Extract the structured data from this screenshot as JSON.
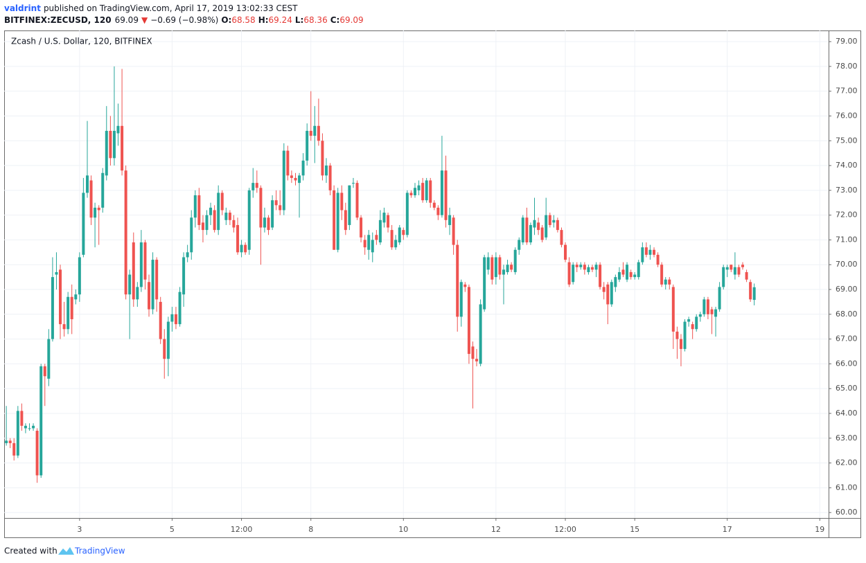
{
  "header": {
    "author": "valdrint",
    "published": "published on TradingView.com, April 17, 2019 13:02:33 CEST"
  },
  "footer": {
    "created": "Created with",
    "brand": "TradingView"
  },
  "chart_data": {
    "type": "candlestick",
    "title": "Zcash / U.S. Dollar, 120, BITFINEX",
    "quote": {
      "symbol": "BITFINEX:ZECUSD, 120",
      "last": 69.09,
      "arrow": "▼",
      "change": "−0.69 (−0.98%)",
      "open_label": "O:",
      "open": 68.58,
      "high_label": "H:",
      "high": 69.24,
      "low_label": "L:",
      "low": 68.36,
      "close_label": "C:",
      "close": 69.09
    },
    "up_color": "#26a69a",
    "down_color": "#ef5350",
    "grid": true,
    "xlim": [
      1.37,
      19.19
    ],
    "xticks": [
      3,
      5,
      {
        "value": 6.5,
        "label": "12:00"
      },
      8,
      10,
      12,
      {
        "value": 13.5,
        "label": "12:00"
      },
      15,
      17,
      19
    ],
    "ylim": [
      59.78,
      79.45
    ],
    "yticks": [
      {
        "value": 60,
        "label": "60.00"
      },
      {
        "value": 61,
        "label": "61.00"
      },
      {
        "value": 62,
        "label": "62.00"
      },
      {
        "value": 63,
        "label": "63.00"
      },
      {
        "value": 64,
        "label": "64.00"
      },
      {
        "value": 65,
        "label": "65.00"
      },
      {
        "value": 66,
        "label": "66.00"
      },
      {
        "value": 67,
        "label": "67.00"
      },
      {
        "value": 68,
        "label": "68.00"
      },
      {
        "value": 69,
        "label": "69.00"
      },
      {
        "value": 70,
        "label": "70.00"
      },
      {
        "value": 71,
        "label": "71.00"
      },
      {
        "value": 72,
        "label": "72.00"
      },
      {
        "value": 73,
        "label": "73.00"
      },
      {
        "value": 74,
        "label": "74.00"
      },
      {
        "value": 75,
        "label": "75.00"
      },
      {
        "value": 76,
        "label": "76.00"
      },
      {
        "value": 77,
        "label": "77.00"
      },
      {
        "value": 78,
        "label": "78.00"
      },
      {
        "value": 79,
        "label": "79.00"
      }
    ],
    "x": [
      1.417,
      1.5,
      1.583,
      1.667,
      1.75,
      1.833,
      1.917,
      2,
      2.083,
      2.167,
      2.25,
      2.333,
      2.417,
      2.5,
      2.583,
      2.667,
      2.75,
      2.833,
      2.917,
      3,
      3.083,
      3.167,
      3.25,
      3.333,
      3.417,
      3.5,
      3.583,
      3.667,
      3.75,
      3.833,
      3.917,
      4,
      4.083,
      4.167,
      4.25,
      4.333,
      4.417,
      4.5,
      4.583,
      4.667,
      4.75,
      4.833,
      4.917,
      5,
      5.083,
      5.167,
      5.25,
      5.333,
      5.417,
      5.5,
      5.583,
      5.667,
      5.75,
      5.833,
      5.917,
      6,
      6.083,
      6.167,
      6.25,
      6.333,
      6.417,
      6.5,
      6.583,
      6.667,
      6.75,
      6.833,
      6.917,
      7,
      7.083,
      7.167,
      7.25,
      7.333,
      7.417,
      7.5,
      7.583,
      7.667,
      7.75,
      7.833,
      7.917,
      8,
      8.083,
      8.167,
      8.25,
      8.333,
      8.417,
      8.5,
      8.583,
      8.667,
      8.75,
      8.833,
      8.917,
      9,
      9.083,
      9.167,
      9.25,
      9.333,
      9.417,
      9.5,
      9.583,
      9.667,
      9.75,
      9.833,
      9.917,
      10,
      10.083,
      10.167,
      10.25,
      10.333,
      10.417,
      10.5,
      10.583,
      10.667,
      10.75,
      10.833,
      10.917,
      11,
      11.083,
      11.167,
      11.25,
      11.333,
      11.417,
      11.5,
      11.583,
      11.667,
      11.75,
      11.833,
      11.917,
      12,
      12.083,
      12.167,
      12.25,
      12.333,
      12.417,
      12.5,
      12.583,
      12.667,
      12.75,
      12.833,
      12.917,
      13,
      13.083,
      13.167,
      13.25,
      13.333,
      13.417,
      13.5,
      13.583,
      13.667,
      13.75,
      13.833,
      13.917,
      14,
      14.083,
      14.167,
      14.25,
      14.333,
      14.417,
      14.5,
      14.583,
      14.667,
      14.75,
      14.833,
      14.917,
      15,
      15.083,
      15.167,
      15.25,
      15.333,
      15.417,
      15.5,
      15.583,
      15.667,
      15.75,
      15.833,
      15.917,
      16,
      16.083,
      16.167,
      16.25,
      16.333,
      16.417,
      16.5,
      16.583,
      16.667,
      16.75,
      16.833,
      16.917,
      17,
      17.083,
      17.167,
      17.25,
      17.333,
      17.417,
      17.5,
      17.583
    ],
    "open": [
      62.8,
      62.9,
      62.8,
      62.3,
      64.1,
      63.4,
      63.4,
      63.4,
      63.3,
      61.5,
      65.9,
      65.4,
      67.0,
      69.6,
      69.8,
      67.6,
      67.4,
      68.7,
      68.6,
      68.8,
      70.4,
      72.9,
      73.4,
      71.9,
      72.3,
      72.3,
      73.6,
      75.4,
      74.3,
      75.3,
      75.6,
      73.8,
      68.8,
      70.9,
      68.6,
      69.1,
      70.9,
      69.3,
      68.2,
      70.2,
      68.5,
      67.0,
      66.2,
      67.7,
      68.0,
      67.6,
      68.8,
      70.3,
      70.5,
      71.9,
      72.8,
      71.7,
      71.4,
      72.0,
      72.2,
      71.4,
      72.9,
      71.8,
      72.1,
      71.8,
      71.6,
      70.5,
      70.8,
      70.6,
      73.0,
      73.3,
      73.1,
      71.5,
      71.9,
      71.5,
      72.6,
      72.4,
      72.2,
      74.6,
      73.6,
      73.5,
      73.3,
      73.6,
      74.2,
      75.4,
      75.2,
      75.6,
      75.0,
      73.6,
      74.0,
      73.0,
      70.6,
      72.9,
      72.2,
      71.6,
      73.3,
      73.3,
      71.9,
      71.0,
      70.6,
      70.5,
      71.2,
      70.9,
      71.7,
      72.0,
      71.4,
      70.7,
      70.9,
      71.4,
      71.2,
      72.9,
      72.8,
      73.0,
      73.3,
      72.6,
      73.4,
      72.5,
      72.3,
      72.0,
      73.8,
      71.6,
      71.9,
      70.8,
      67.9,
      69.2,
      69.1,
      66.7,
      66.2,
      66.0,
      68.2,
      69.8,
      70.3,
      69.5,
      70.3,
      69.6,
      69.7,
      70.0,
      69.7,
      70.6,
      70.9,
      71.9,
      70.9,
      71.5,
      71.7,
      71.5,
      71.1,
      72.0,
      71.7,
      71.8,
      71.4,
      70.8,
      70.1,
      69.3,
      70.0,
      69.9,
      70.0,
      69.7,
      69.9,
      69.8,
      70.0,
      69.1,
      69.2,
      68.4,
      69.1,
      69.4,
      69.8,
      69.4,
      69.7,
      69.5,
      69.5,
      70.1,
      70.7,
      70.4,
      70.6,
      70.4,
      70.0,
      69.2,
      69.4,
      69.1,
      67.3,
      67.0,
      66.6,
      67.7,
      67.6,
      67.4,
      67.9,
      68.0,
      68.6,
      68.2,
      67.9,
      68.2,
      69.1,
      69.8,
      70.0,
      69.6,
      69.9,
      70.0,
      69.7,
      69.3,
      68.58
    ],
    "high": [
      64.3,
      63.0,
      63.0,
      64.3,
      64.4,
      63.6,
      63.6,
      63.6,
      63.4,
      66.0,
      66.0,
      67.4,
      70.3,
      70.5,
      70.0,
      68.5,
      68.9,
      69.2,
      69.0,
      70.5,
      73.5,
      75.8,
      73.6,
      72.5,
      72.4,
      73.9,
      76.4,
      76.0,
      78.0,
      76.5,
      77.9,
      74.0,
      69.8,
      71.3,
      69.3,
      71.4,
      71.0,
      69.6,
      70.5,
      70.3,
      68.7,
      67.4,
      67.9,
      68.3,
      68.3,
      69.1,
      70.5,
      70.8,
      72.2,
      73.0,
      73.1,
      72.0,
      72.2,
      72.5,
      72.4,
      73.2,
      73.0,
      72.3,
      72.2,
      72.0,
      71.9,
      71.0,
      70.9,
      73.1,
      73.9,
      73.8,
      73.2,
      72.3,
      72.0,
      72.8,
      73.0,
      73.0,
      74.9,
      74.8,
      73.8,
      73.7,
      73.7,
      74.5,
      75.7,
      77.0,
      76.4,
      76.7,
      75.3,
      74.3,
      74.1,
      73.2,
      73.1,
      73.2,
      72.5,
      73.2,
      73.5,
      73.4,
      72.0,
      71.2,
      71.4,
      71.3,
      71.4,
      72.2,
      72.3,
      72.1,
      71.6,
      71.2,
      71.6,
      71.5,
      73.0,
      73.0,
      73.3,
      73.4,
      73.5,
      73.5,
      73.5,
      72.6,
      72.4,
      75.2,
      74.4,
      72.3,
      72.0,
      71.0,
      69.4,
      69.3,
      69.2,
      66.9,
      66.6,
      68.6,
      70.4,
      70.5,
      70.4,
      70.5,
      70.4,
      70.0,
      70.2,
      70.1,
      70.7,
      71.1,
      72.0,
      72.3,
      71.7,
      72.7,
      71.9,
      71.6,
      72.7,
      72.1,
      72.0,
      71.9,
      71.5,
      70.9,
      70.3,
      70.1,
      70.1,
      70.1,
      70.1,
      70.0,
      70.0,
      70.1,
      70.1,
      69.3,
      69.3,
      69.4,
      69.6,
      69.9,
      70.1,
      70.1,
      69.8,
      69.7,
      70.2,
      70.9,
      70.9,
      70.8,
      70.7,
      70.5,
      70.1,
      69.5,
      69.5,
      69.2,
      67.5,
      67.2,
      67.8,
      67.9,
      67.7,
      68.0,
      68.1,
      68.7,
      68.7,
      68.3,
      68.3,
      69.3,
      70.0,
      70.0,
      70.0,
      70.5,
      70.0,
      70.1,
      69.8,
      69.4,
      69.24
    ],
    "low": [
      62.7,
      62.6,
      62.1,
      62.2,
      63.3,
      63.2,
      63.3,
      63.3,
      61.2,
      61.4,
      64.3,
      65.1,
      66.9,
      69.0,
      67.0,
      67.1,
      67.2,
      67.2,
      68.4,
      68.5,
      70.3,
      72.7,
      71.6,
      70.7,
      70.8,
      72.1,
      73.4,
      74.0,
      74.0,
      74.8,
      73.6,
      68.6,
      67.0,
      68.3,
      68.3,
      68.9,
      69.0,
      67.9,
      68.0,
      68.1,
      66.8,
      65.4,
      65.5,
      67.3,
      67.4,
      67.5,
      68.3,
      70.1,
      70.2,
      71.5,
      71.4,
      70.9,
      71.2,
      71.6,
      71.3,
      71.2,
      72.0,
      71.6,
      71.6,
      71.3,
      70.4,
      70.3,
      70.4,
      70.4,
      72.7,
      72.9,
      70.0,
      71.3,
      71.2,
      71.4,
      72.2,
      72.0,
      72.0,
      73.4,
      73.3,
      73.2,
      71.9,
      73.4,
      74.0,
      75.0,
      74.1,
      74.8,
      73.4,
      73.3,
      72.8,
      70.6,
      70.5,
      71.8,
      71.2,
      71.4,
      73.1,
      71.8,
      70.9,
      70.4,
      70.2,
      70.1,
      70.8,
      70.8,
      71.5,
      71.3,
      70.6,
      70.6,
      70.8,
      71.0,
      71.1,
      72.7,
      72.7,
      72.8,
      72.5,
      72.5,
      72.3,
      72.2,
      71.8,
      71.9,
      71.5,
      71.2,
      70.4,
      67.3,
      67.5,
      68.9,
      66.0,
      64.2,
      65.9,
      65.9,
      68.1,
      69.6,
      69.2,
      69.2,
      69.4,
      68.4,
      69.6,
      69.7,
      69.6,
      70.4,
      70.8,
      70.8,
      70.8,
      71.2,
      71.2,
      70.9,
      71.0,
      71.5,
      71.5,
      71.3,
      70.7,
      70.1,
      69.1,
      69.2,
      69.7,
      69.8,
      69.6,
      69.6,
      69.7,
      69.5,
      69.0,
      68.6,
      67.6,
      68.3,
      68.9,
      69.3,
      69.5,
      69.3,
      69.4,
      69.4,
      69.4,
      70.0,
      70.3,
      70.2,
      70.3,
      69.9,
      69.1,
      69.0,
      69.0,
      66.6,
      66.2,
      65.9,
      66.5,
      67.5,
      67.0,
      67.3,
      67.7,
      67.9,
      67.8,
      67.2,
      67.1,
      68.1,
      69.0,
      69.5,
      69.7,
      69.4,
      69.5,
      69.8,
      69.3,
      68.5,
      68.36
    ],
    "close": [
      62.9,
      62.8,
      62.3,
      64.1,
      63.5,
      63.5,
      63.4,
      63.5,
      61.5,
      65.9,
      65.5,
      67.0,
      69.5,
      69.7,
      67.6,
      67.4,
      68.7,
      67.8,
      68.8,
      70.3,
      72.9,
      73.6,
      71.9,
      72.3,
      72.2,
      73.7,
      75.4,
      74.3,
      75.4,
      75.6,
      73.8,
      68.8,
      69.6,
      68.6,
      69.1,
      70.9,
      69.4,
      68.2,
      70.2,
      68.6,
      67.0,
      66.2,
      67.7,
      68.0,
      67.6,
      68.9,
      70.3,
      70.5,
      71.9,
      72.8,
      71.6,
      71.4,
      72.0,
      72.3,
      71.4,
      72.9,
      72.2,
      72.1,
      71.8,
      71.5,
      70.5,
      70.8,
      70.5,
      73.0,
      73.3,
      73.1,
      71.5,
      71.9,
      71.4,
      72.6,
      72.4,
      72.2,
      74.6,
      73.6,
      73.5,
      73.4,
      73.6,
      74.2,
      75.4,
      75.2,
      75.6,
      75.0,
      73.6,
      74.0,
      73.0,
      70.6,
      72.9,
      72.2,
      71.4,
      73.2,
      73.3,
      71.9,
      71.1,
      70.7,
      71.2,
      71.0,
      71.0,
      71.8,
      72.1,
      71.5,
      70.7,
      71.0,
      71.5,
      71.2,
      72.9,
      72.8,
      73.1,
      73.2,
      72.6,
      73.4,
      72.5,
      72.3,
      72.0,
      73.8,
      71.8,
      72.0,
      70.8,
      67.9,
      69.3,
      69.1,
      66.4,
      66.2,
      66.1,
      68.4,
      70.3,
      70.3,
      69.4,
      70.3,
      69.6,
      69.8,
      70.0,
      69.8,
      70.6,
      71.0,
      71.9,
      70.9,
      71.6,
      71.8,
      71.4,
      71.0,
      72.0,
      71.6,
      71.8,
      71.4,
      70.8,
      70.2,
      69.2,
      70.0,
      69.9,
      70.0,
      69.8,
      69.9,
      69.8,
      70.0,
      69.1,
      68.9,
      68.4,
      69.3,
      69.5,
      69.7,
      69.6,
      70.0,
      69.5,
      69.6,
      70.1,
      70.7,
      70.4,
      70.6,
      70.4,
      70.0,
      69.2,
      69.4,
      69.2,
      67.3,
      67.0,
      66.6,
      67.7,
      67.8,
      67.4,
      67.9,
      68.0,
      68.6,
      68.0,
      68.0,
      68.2,
      69.1,
      69.9,
      69.9,
      69.8,
      69.9,
      69.6,
      69.9,
      69.4,
      68.6,
      69.09
    ]
  }
}
